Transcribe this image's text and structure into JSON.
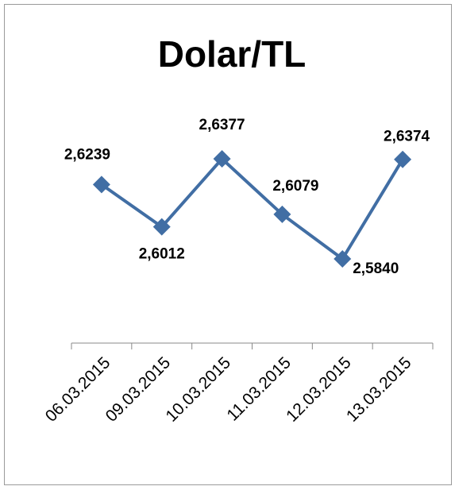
{
  "chart_data": {
    "type": "line",
    "title": "Dolar/TL",
    "categories": [
      "06.03.2015",
      "09.03.2015",
      "10.03.2015",
      "11.03.2015",
      "12.03.2015",
      "13.03.2015"
    ],
    "series": [
      {
        "name": "Dolar/TL",
        "color": "#416ea4",
        "values": [
          2.6239,
          2.6012,
          2.6377,
          2.6079,
          2.584,
          2.6374
        ],
        "value_labels": [
          "2,6239",
          "2,6012",
          "2,6377",
          "2,6079",
          "2,5840",
          "2,6374"
        ]
      }
    ]
  }
}
